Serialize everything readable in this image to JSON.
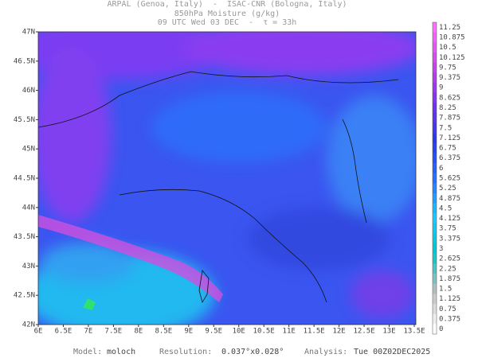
{
  "header": {
    "lines": [
      "ARPAL (Genoa, Italy)  -  ISAC-CNR (Bologna, Italy)",
      "850hPa Moisture (g/kg)",
      "09 UTC Wed 03 DEC  -  τ = 33h"
    ]
  },
  "map": {
    "xticks": [
      "6E",
      "6.5E",
      "7E",
      "7.5E",
      "8E",
      "8.5E",
      "9E",
      "9.5E",
      "10E",
      "10.5E",
      "11E",
      "11.5E",
      "12E",
      "12.5E",
      "13E",
      "13.5E"
    ],
    "yticks": [
      "47N",
      "46.5N",
      "46N",
      "45.5N",
      "45N",
      "44.5N",
      "44N",
      "43.5N",
      "43N",
      "42.5N",
      "42N"
    ]
  },
  "colorbar": {
    "labels": [
      "11.25",
      "10.875",
      "10.5",
      "10.125",
      "9.75",
      "9.375",
      "9",
      "8.625",
      "8.25",
      "7.875",
      "7.5",
      "7.125",
      "6.75",
      "6.375",
      "6",
      "5.625",
      "5.25",
      "4.875",
      "4.5",
      "4.125",
      "3.75",
      "3.375",
      "3",
      "2.625",
      "2.25",
      "1.875",
      "1.5",
      "1.125",
      "0.75",
      "0.375",
      "0"
    ]
  },
  "footer": {
    "items": [
      {
        "label": "Model:",
        "value": "moloch"
      },
      {
        "label": "Resolution:",
        "value": "0.037°x0.028°"
      },
      {
        "label": "Analysis:",
        "value": "Tue 00Z02DEC2025"
      }
    ]
  }
}
